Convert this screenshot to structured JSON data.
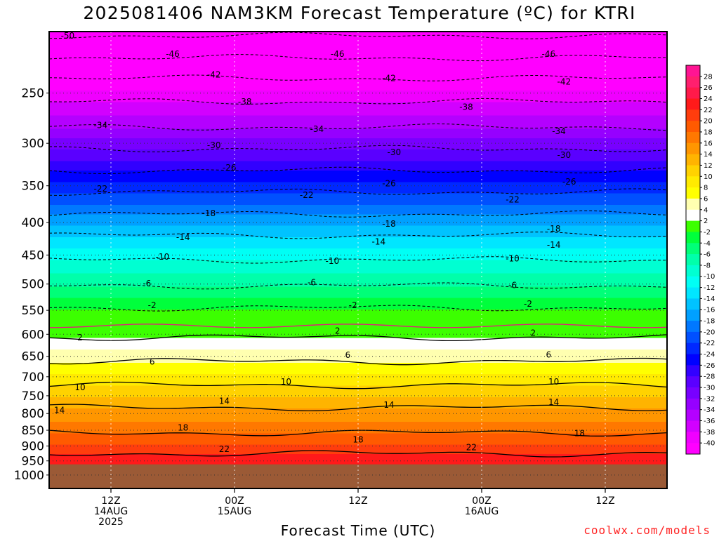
{
  "header": {
    "title": "2025081406 NAM3KM Forecast Temperature (ºC) for KTRI"
  },
  "footer": {
    "xlabel": "Forecast Time (UTC)",
    "credit": "coolwx.com/models"
  },
  "chart_data": {
    "type": "heatmap",
    "title": "2025081406 NAM3KM Forecast Temperature (ºC) for KTRI",
    "xlabel": "Forecast Time (UTC)",
    "ylabel": "",
    "y_axis": {
      "scale": "log",
      "reversed": true,
      "unit": "hPa",
      "range": [
        200,
        1050
      ],
      "ticks": [
        250,
        300,
        350,
        400,
        450,
        500,
        550,
        600,
        650,
        700,
        750,
        800,
        850,
        900,
        950,
        1000
      ]
    },
    "x_axis": {
      "range_hours_from_init": [
        0,
        60
      ],
      "ticks": [
        {
          "hour": 6,
          "lines": [
            "12Z",
            "14AUG",
            "2025"
          ]
        },
        {
          "hour": 18,
          "lines": [
            "00Z",
            "15AUG"
          ]
        },
        {
          "hour": 30,
          "lines": [
            "12Z"
          ]
        },
        {
          "hour": 42,
          "lines": [
            "00Z",
            "16AUG"
          ]
        },
        {
          "hour": 54,
          "lines": [
            "12Z"
          ]
        }
      ]
    },
    "surface_pressure_hPa": 962,
    "freezing_level_hPa": 582,
    "grid": true,
    "colorbar": {
      "placement": "right",
      "labels": [
        28,
        26,
        24,
        22,
        20,
        18,
        16,
        14,
        12,
        10,
        8,
        6,
        4,
        2,
        -2,
        -4,
        -6,
        -8,
        -10,
        -12,
        -14,
        -16,
        -18,
        -20,
        -22,
        -24,
        -26,
        -28,
        -30,
        -32,
        -34,
        -36,
        -38,
        -40
      ],
      "colors": [
        "#ff1493",
        "#ff1f6e",
        "#ff1a4a",
        "#ff1a1a",
        "#ff3d0d",
        "#ff5a00",
        "#ff7800",
        "#ff9600",
        "#ffb400",
        "#ffd200",
        "#ffeb00",
        "#ffff00",
        "#ffffb0",
        "#ffffff",
        "#3cff00",
        "#00ff3c",
        "#00ff78",
        "#00ffaa",
        "#00ffd2",
        "#00fff5",
        "#00e6ff",
        "#00c3ff",
        "#00a0ff",
        "#0078ff",
        "#0050ff",
        "#0028ff",
        "#0000ff",
        "#3200ff",
        "#5a00ff",
        "#7800ff",
        "#9600ff",
        "#b400ff",
        "#d200ff",
        "#f000ff",
        "#ff00ff"
      ]
    },
    "isotherms": [
      {
        "temp": -50,
        "p": 203
      },
      {
        "temp": -46,
        "p": 220
      },
      {
        "temp": -42,
        "p": 237
      },
      {
        "temp": -38,
        "p": 258
      },
      {
        "temp": -34,
        "p": 283
      },
      {
        "temp": -30,
        "p": 306
      },
      {
        "temp": -26,
        "p": 331
      },
      {
        "temp": -22,
        "p": 358
      },
      {
        "temp": -18,
        "p": 388
      },
      {
        "temp": -14,
        "p": 419
      },
      {
        "temp": -10,
        "p": 458
      },
      {
        "temp": -6,
        "p": 503
      },
      {
        "temp": -2,
        "p": 545
      },
      {
        "temp": 2,
        "p": 607
      },
      {
        "temp": 6,
        "p": 662
      },
      {
        "temp": 10,
        "p": 722
      },
      {
        "temp": 14,
        "p": 783
      },
      {
        "temp": 18,
        "p": 858
      },
      {
        "temp": 22,
        "p": 925
      }
    ],
    "isotherm_labels": [
      {
        "text": "-50",
        "hour": 1.8,
        "p": 203
      },
      {
        "text": "-46",
        "hour": 12,
        "p": 217
      },
      {
        "text": "-46",
        "hour": 28,
        "p": 217
      },
      {
        "text": "-46",
        "hour": 48.5,
        "p": 217
      },
      {
        "text": "-42",
        "hour": 16,
        "p": 234
      },
      {
        "text": "-42",
        "hour": 33,
        "p": 237
      },
      {
        "text": "-42",
        "hour": 50,
        "p": 240
      },
      {
        "text": "-38",
        "hour": 19,
        "p": 258
      },
      {
        "text": "-38",
        "hour": 40.5,
        "p": 263
      },
      {
        "text": "-34",
        "hour": 5,
        "p": 281
      },
      {
        "text": "-34",
        "hour": 26,
        "p": 285
      },
      {
        "text": "-34",
        "hour": 49.5,
        "p": 287
      },
      {
        "text": "-30",
        "hour": 16,
        "p": 302
      },
      {
        "text": "-30",
        "hour": 33.5,
        "p": 310
      },
      {
        "text": "-30",
        "hour": 50,
        "p": 313
      },
      {
        "text": "-26",
        "hour": 17.5,
        "p": 328
      },
      {
        "text": "-26",
        "hour": 33,
        "p": 347
      },
      {
        "text": "-26",
        "hour": 50.5,
        "p": 345
      },
      {
        "text": "-22",
        "hour": 5,
        "p": 354
      },
      {
        "text": "-22",
        "hour": 25,
        "p": 362
      },
      {
        "text": "-22",
        "hour": 45,
        "p": 368
      },
      {
        "text": "-18",
        "hour": 15.5,
        "p": 387
      },
      {
        "text": "-18",
        "hour": 33,
        "p": 402
      },
      {
        "text": "-18",
        "hour": 49,
        "p": 409
      },
      {
        "text": "-14",
        "hour": 13,
        "p": 422
      },
      {
        "text": "-14",
        "hour": 32,
        "p": 429
      },
      {
        "text": "-14",
        "hour": 49,
        "p": 434
      },
      {
        "text": "-10",
        "hour": 11,
        "p": 453
      },
      {
        "text": "-10",
        "hour": 27.5,
        "p": 460
      },
      {
        "text": "-10",
        "hour": 45,
        "p": 456
      },
      {
        "text": "-6",
        "hour": 9.5,
        "p": 499
      },
      {
        "text": "-6",
        "hour": 25.5,
        "p": 497
      },
      {
        "text": "-6",
        "hour": 45,
        "p": 502
      },
      {
        "text": "-2",
        "hour": 10,
        "p": 540
      },
      {
        "text": "-2",
        "hour": 29.5,
        "p": 540
      },
      {
        "text": "-2",
        "hour": 46.5,
        "p": 537
      },
      {
        "text": "2",
        "hour": 3,
        "p": 607
      },
      {
        "text": "2",
        "hour": 28,
        "p": 593
      },
      {
        "text": "2",
        "hour": 47,
        "p": 597
      },
      {
        "text": "6",
        "hour": 10,
        "p": 663
      },
      {
        "text": "6",
        "hour": 29,
        "p": 647
      },
      {
        "text": "6",
        "hour": 48.5,
        "p": 646
      },
      {
        "text": "10",
        "hour": 3,
        "p": 728
      },
      {
        "text": "10",
        "hour": 23,
        "p": 713
      },
      {
        "text": "10",
        "hour": 49,
        "p": 713
      },
      {
        "text": "14",
        "hour": 1,
        "p": 790
      },
      {
        "text": "14",
        "hour": 17,
        "p": 765
      },
      {
        "text": "14",
        "hour": 33,
        "p": 775
      },
      {
        "text": "14",
        "hour": 49,
        "p": 768
      },
      {
        "text": "18",
        "hour": 13,
        "p": 842
      },
      {
        "text": "18",
        "hour": 30,
        "p": 880
      },
      {
        "text": "18",
        "hour": 51.5,
        "p": 860
      },
      {
        "text": "22",
        "hour": 17,
        "p": 910
      },
      {
        "text": "22",
        "hour": 41,
        "p": 905
      }
    ]
  }
}
